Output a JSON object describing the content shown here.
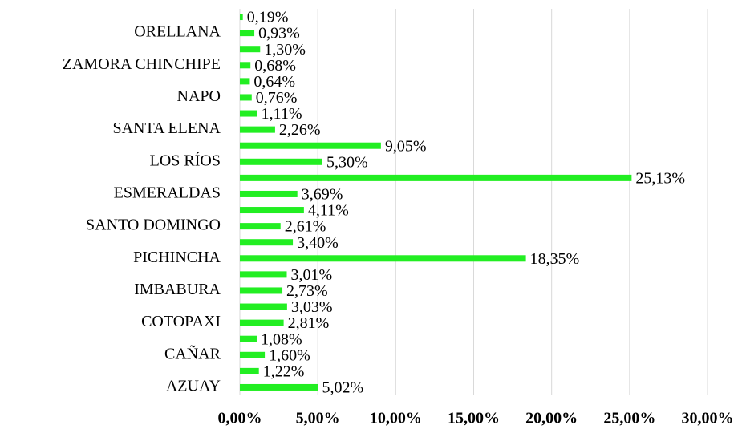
{
  "chart_data": {
    "type": "barh",
    "categories": [
      "AZUAY",
      null,
      "CAÑAR",
      null,
      "COTOPAXI",
      null,
      "IMBABURA",
      null,
      "PICHINCHA",
      null,
      "SANTO DOMINGO",
      null,
      "ESMERALDAS",
      null,
      "LOS RÍOS",
      null,
      "SANTA ELENA",
      null,
      "NAPO",
      null,
      "ZAMORA CHINCHIPE",
      null,
      "ORELLANA",
      null
    ],
    "values": [
      5.02,
      1.22,
      1.6,
      1.08,
      2.81,
      3.03,
      2.73,
      3.01,
      18.35,
      3.4,
      2.61,
      4.11,
      3.69,
      25.13,
      5.3,
      9.05,
      2.26,
      1.11,
      0.76,
      0.64,
      0.68,
      1.3,
      0.93,
      0.19
    ],
    "value_labels": [
      "5,02%",
      "1,22%",
      "1,60%",
      "1,08%",
      "2,81%",
      "3,03%",
      "2,73%",
      "3,01%",
      "18,35%",
      "3,40%",
      "2,61%",
      "4,11%",
      "3,69%",
      "25,13%",
      "5,30%",
      "9,05%",
      "2,26%",
      "1,11%",
      "0,76%",
      "0,64%",
      "0,68%",
      "1,30%",
      "0,93%",
      "0,19%"
    ],
    "color": "#22ee22",
    "xlim": [
      0,
      30
    ],
    "xticks": [
      {
        "value": 0,
        "label": "0,00%"
      },
      {
        "value": 5,
        "label": "5,00%"
      },
      {
        "value": 10,
        "label": "10,00%"
      },
      {
        "value": 15,
        "label": "15,00%"
      },
      {
        "value": 20,
        "label": "20,00%"
      },
      {
        "value": 25,
        "label": "25,00%"
      },
      {
        "value": 30,
        "label": "30,00%"
      }
    ],
    "grid": true
  }
}
